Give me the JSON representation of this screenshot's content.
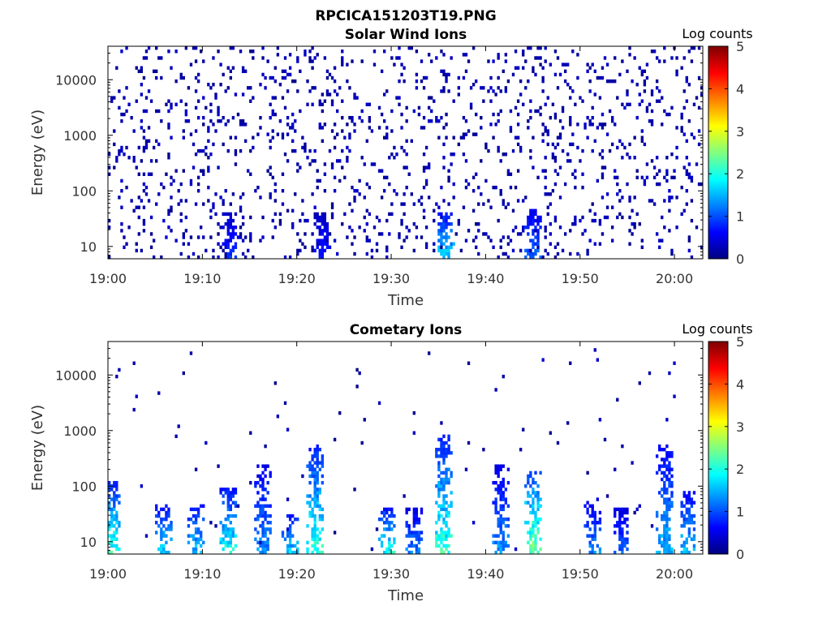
{
  "figure_title": "RPCICA151203T19.PNG",
  "colors": {
    "jet": [
      "#00007f",
      "#0000ff",
      "#0080ff",
      "#00ffff",
      "#80ff80",
      "#ffff00",
      "#ff8000",
      "#ff0000",
      "#7f0000"
    ]
  },
  "chart_data": [
    {
      "type": "heatmap",
      "title": "Solar Wind Ions",
      "xlabel": "Time",
      "ylabel": "Energy (eV)",
      "yscale": "log",
      "xlim": [
        "19:00",
        "20:03"
      ],
      "ylim": [
        6,
        40000
      ],
      "x_ticks": [
        "19:00",
        "19:10",
        "19:20",
        "19:30",
        "19:40",
        "19:50",
        "20:00"
      ],
      "y_ticks": [
        "10",
        "100",
        "1000",
        "10000"
      ],
      "colorbar": {
        "label": "Log counts",
        "range": [
          0,
          5
        ],
        "ticks": [
          "0",
          "1",
          "2",
          "3",
          "4",
          "5"
        ]
      },
      "profile": {
        "description_values": "sparse background of single counts (log counts ~0-0.5) across 6 eV - 20 keV; enhanced streaks near 10-40 eV",
        "bursts": [
          {
            "time_min": 12.8,
            "energy_max": 40,
            "level": 1.0
          },
          {
            "time_min": 22.6,
            "energy_max": 40,
            "level": 0.9
          },
          {
            "time_min": 35.6,
            "energy_max": 40,
            "level": 2.0
          },
          {
            "time_min": 44.9,
            "energy_max": 50,
            "level": 1.4
          }
        ]
      }
    },
    {
      "type": "heatmap",
      "title": "Cometary Ions",
      "xlabel": "Time",
      "ylabel": "Energy (eV)",
      "yscale": "log",
      "xlim": [
        "19:00",
        "20:03"
      ],
      "ylim": [
        6,
        40000
      ],
      "x_ticks": [
        "19:00",
        "19:10",
        "19:20",
        "19:30",
        "19:40",
        "19:50",
        "20:00"
      ],
      "y_ticks": [
        "10",
        "100",
        "1000",
        "10000"
      ],
      "colorbar": {
        "label": "Log counts",
        "range": [
          0,
          5
        ],
        "ticks": [
          "0",
          "1",
          "2",
          "3",
          "4",
          "5"
        ]
      },
      "bursts": [
        {
          "time_min": 0.3,
          "energy_max": 120,
          "level": 2.5
        },
        {
          "time_min": 5.7,
          "energy_max": 45,
          "level": 2.0
        },
        {
          "time_min": 9.2,
          "energy_max": 50,
          "level": 1.9
        },
        {
          "time_min": 12.7,
          "energy_max": 90,
          "level": 2.3
        },
        {
          "time_min": 16.3,
          "energy_max": 250,
          "level": 1.6
        },
        {
          "time_min": 19.2,
          "energy_max": 30,
          "level": 2.0
        },
        {
          "time_min": 21.9,
          "energy_max": 600,
          "level": 2.4
        },
        {
          "time_min": 29.5,
          "energy_max": 40,
          "level": 2.3
        },
        {
          "time_min": 32.4,
          "energy_max": 40,
          "level": 1.5
        },
        {
          "time_min": 35.4,
          "energy_max": 800,
          "level": 2.5
        },
        {
          "time_min": 41.5,
          "energy_max": 250,
          "level": 1.6
        },
        {
          "time_min": 44.9,
          "energy_max": 200,
          "level": 2.9
        },
        {
          "time_min": 51.3,
          "energy_max": 60,
          "level": 1.5
        },
        {
          "time_min": 54.2,
          "energy_max": 40,
          "level": 1.3
        },
        {
          "time_min": 58.9,
          "energy_max": 600,
          "level": 1.8
        },
        {
          "time_min": 61.3,
          "energy_max": 80,
          "level": 1.9
        }
      ]
    }
  ]
}
